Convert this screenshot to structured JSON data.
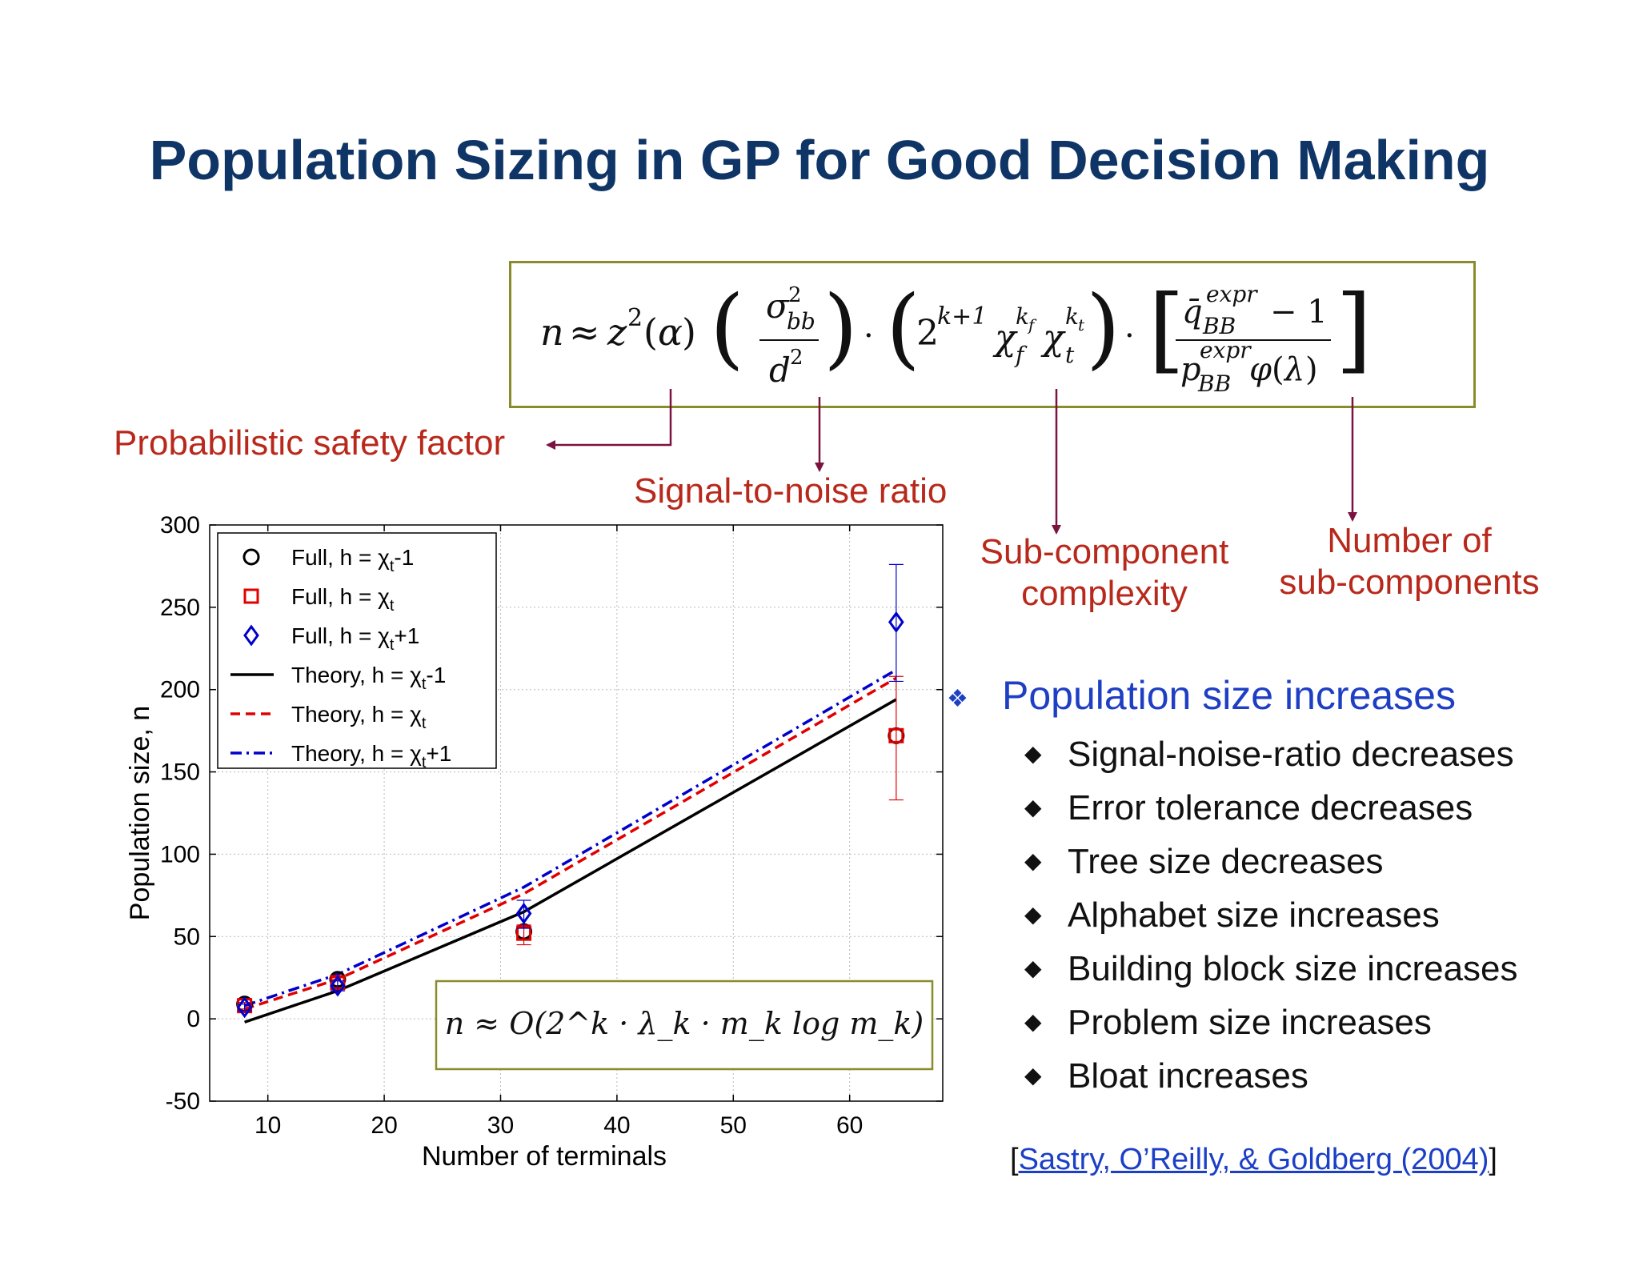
{
  "title": "Population Sizing in GP for Good Decision Making",
  "equation": {
    "description": "n ≈ z²(α) (σ²_bb / d²) · (2^(k+1) χ_f^(k_f) χ_t^(k_t)) · [ (q_BB^expr − 1) / (p_BB^expr φ(λ)) ]"
  },
  "annotations": {
    "safety": "Probabilistic safety factor",
    "snr": "Signal-to-noise ratio",
    "complexity_l1": "Sub-component",
    "complexity_l2": "complexity",
    "number_l1": "Number of",
    "number_l2": "sub-components"
  },
  "bullets": {
    "main": "Population size increases",
    "items": [
      "Signal-noise-ratio decreases",
      "Error tolerance decreases",
      "Tree size decreases",
      "Alphabet size increases",
      "Building block size increases",
      "Problem size increases",
      "Bloat increases"
    ]
  },
  "reference": {
    "open": "[",
    "link": "Sastry, O’Reilly, & Goldberg (2004)",
    "close": "]"
  },
  "colors": {
    "title": "#0f3567",
    "annotation": "#b8291c",
    "arrow": "#7b1240",
    "bullet_main": "#1e3fc4",
    "series_black": "#000000",
    "series_red": "#e00000",
    "series_blue": "#0000cc"
  },
  "chart_data": {
    "type": "line",
    "xlabel": "Number of terminals",
    "ylabel": "Population size, n",
    "xlim": [
      5,
      68
    ],
    "ylim": [
      -50,
      300
    ],
    "xticks": [
      10,
      20,
      30,
      40,
      50,
      60
    ],
    "yticks": [
      -50,
      0,
      50,
      100,
      150,
      200,
      250,
      300
    ],
    "grid": true,
    "legend_position": "top-left",
    "inset_formula": "n ≈ O(2^k · λ_k · m_k log m_k)",
    "series": [
      {
        "name": "Full, h = χt-1",
        "label_main": "Full, h = χ",
        "label_sub": "t",
        "label_tail": "-1",
        "kind": "marker",
        "marker": "circle",
        "color": "#000000",
        "points": [
          {
            "x": 8,
            "y": 9
          },
          {
            "x": 16,
            "y": 24
          },
          {
            "x": 32,
            "y": 53
          },
          {
            "x": 64,
            "y": 172
          }
        ]
      },
      {
        "name": "Full, h = χt",
        "label_main": "Full, h = χ",
        "label_sub": "t",
        "label_tail": "",
        "kind": "marker",
        "marker": "square",
        "color": "#e00000",
        "points": [
          {
            "x": 8,
            "y": 8,
            "err": [
              6,
              10
            ]
          },
          {
            "x": 16,
            "y": 22,
            "err": [
              19,
              25
            ]
          },
          {
            "x": 32,
            "y": 52,
            "err": [
              45,
              57
            ]
          },
          {
            "x": 64,
            "y": 172,
            "err": [
              133,
              208
            ]
          }
        ]
      },
      {
        "name": "Full, h = χt+1",
        "label_main": "Full, h = χ",
        "label_sub": "t",
        "label_tail": "+1",
        "kind": "marker",
        "marker": "diamond",
        "color": "#0000cc",
        "points": [
          {
            "x": 8,
            "y": 7,
            "err": [
              5,
              9
            ]
          },
          {
            "x": 16,
            "y": 20,
            "err": [
              17,
              23
            ]
          },
          {
            "x": 32,
            "y": 64,
            "err": [
              55,
              72
            ]
          },
          {
            "x": 64,
            "y": 241,
            "err": [
              205,
              276
            ]
          }
        ]
      },
      {
        "name": "Theory, h = χt-1",
        "label_main": "Theory, h = χ",
        "label_sub": "t",
        "label_tail": "-1",
        "kind": "line",
        "dash": "solid",
        "color": "#000000",
        "points": [
          {
            "x": 8,
            "y": -2
          },
          {
            "x": 16,
            "y": 17
          },
          {
            "x": 32,
            "y": 65
          },
          {
            "x": 64,
            "y": 194
          }
        ]
      },
      {
        "name": "Theory, h = χt",
        "label_main": "Theory, h = χ",
        "label_sub": "t",
        "label_tail": "",
        "kind": "line",
        "dash": "dashed",
        "color": "#e00000",
        "points": [
          {
            "x": 8,
            "y": 6
          },
          {
            "x": 16,
            "y": 24
          },
          {
            "x": 32,
            "y": 76
          },
          {
            "x": 64,
            "y": 207
          }
        ]
      },
      {
        "name": "Theory, h = χt+1",
        "label_main": "Theory, h = χ",
        "label_sub": "t",
        "label_tail": "+1",
        "kind": "line",
        "dash": "dashdot",
        "color": "#0000cc",
        "points": [
          {
            "x": 8,
            "y": 8
          },
          {
            "x": 16,
            "y": 27
          },
          {
            "x": 32,
            "y": 80
          },
          {
            "x": 64,
            "y": 212
          }
        ]
      }
    ]
  }
}
